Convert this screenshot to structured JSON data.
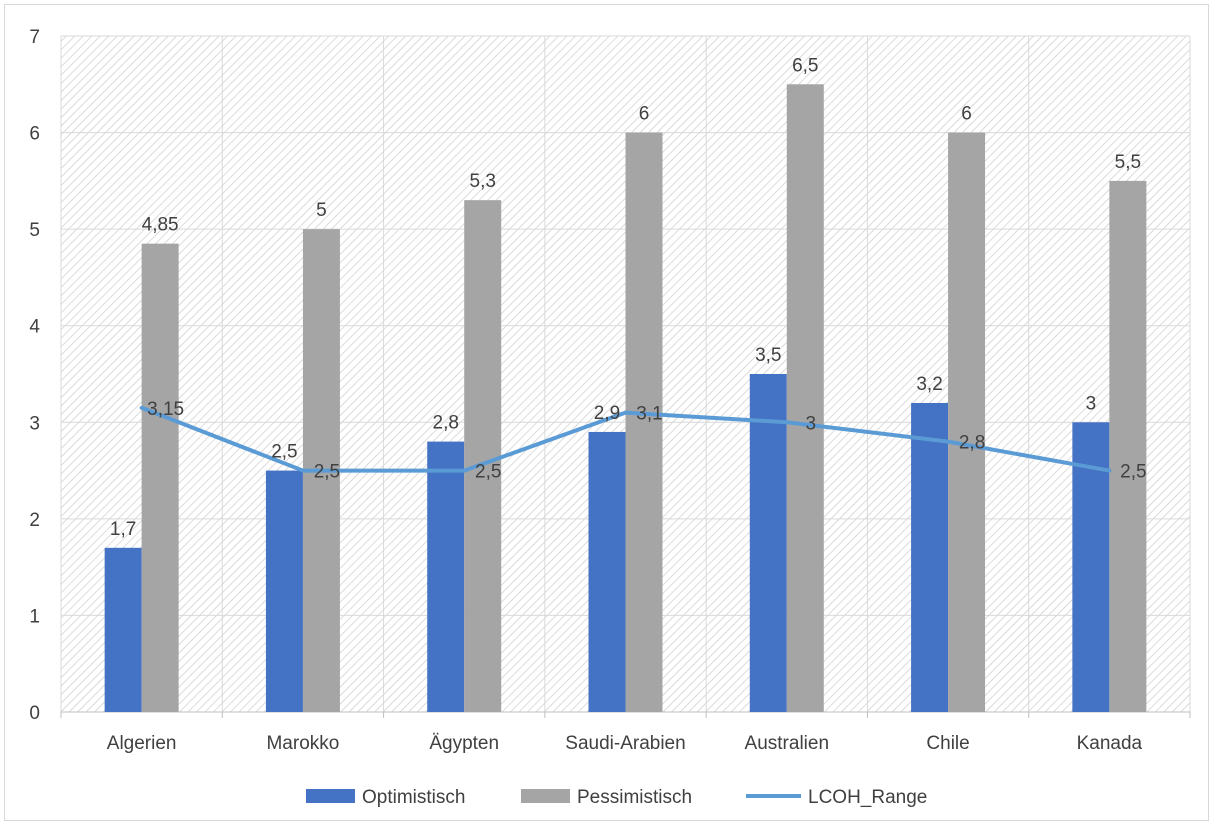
{
  "chart_data": {
    "type": "bar",
    "title": "",
    "xlabel": "",
    "ylabel": "",
    "ylim": [
      0,
      7
    ],
    "yticks": [
      "0",
      "1",
      "2",
      "3",
      "4",
      "5",
      "6",
      "7"
    ],
    "categories": [
      "Algerien",
      "Marokko",
      "Ägypten",
      "Saudi-Arabien",
      "Australien",
      "Chile",
      "Kanada"
    ],
    "grid": true,
    "legend_position": "bottom",
    "series": [
      {
        "name": "Optimistisch",
        "kind": "bar",
        "color": "#4472C4",
        "values": [
          1.7,
          2.5,
          2.8,
          2.9,
          3.5,
          3.2,
          3
        ],
        "labels": [
          "1,7",
          "2,5",
          "2,8",
          "2,9",
          "3,5",
          "3,2",
          "3"
        ]
      },
      {
        "name": "Pessimistisch",
        "kind": "bar",
        "color": "#A5A5A5",
        "values": [
          4.85,
          5,
          5.3,
          6,
          6.5,
          6,
          5.5
        ],
        "labels": [
          "4,85",
          "5",
          "5,3",
          "6",
          "6,5",
          "6",
          "5,5"
        ]
      },
      {
        "name": "LCOH_Range",
        "kind": "line",
        "color": "#5B9BD5",
        "values": [
          3.15,
          2.5,
          2.5,
          3.1,
          3,
          2.8,
          2.5
        ],
        "labels": [
          "3,15",
          "2,5",
          "2,5",
          "3,1",
          "3",
          "2,8",
          "2,5"
        ]
      }
    ]
  }
}
